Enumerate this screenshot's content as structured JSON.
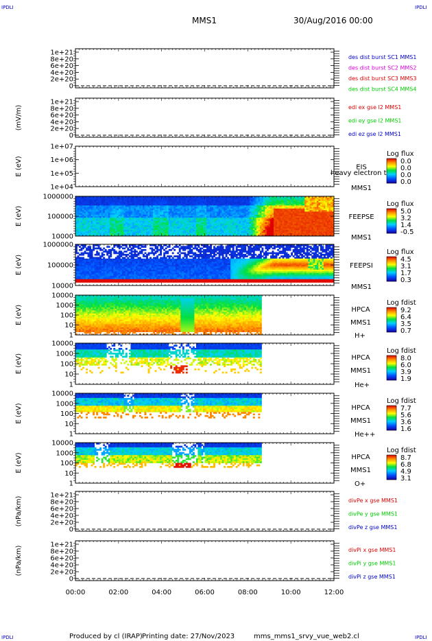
{
  "header": {
    "corner_tl": "IPDLI",
    "corner_tr": "IPDLI",
    "corner_bl": "IPDLI",
    "corner_br": "IPDLI",
    "mission": "MMS1",
    "datetime": "30/Aug/2016 00:00"
  },
  "footer": {
    "producer": "Produced by cl (IRAP)",
    "printing": "Printing date: 27/Nov/2023",
    "file": "mms_mms1_srvy_vue_web2.cl"
  },
  "colors": {
    "red": "#dd0000",
    "magenta": "#dd00dd",
    "green": "#00cc00",
    "blue": "#0000cc"
  },
  "chart_data": {
    "type": "heatmap",
    "x_ticks": [
      "00:00",
      "02:00",
      "04:00",
      "06:00",
      "08:00",
      "10:00",
      "12:00"
    ],
    "x_range_hours": [
      0,
      12
    ],
    "panels": [
      {
        "kind": "line",
        "ylabel": "",
        "yticks": [
          "1e+21",
          "8e+20",
          "6e+20",
          "4e+20",
          "2e+20",
          "0"
        ],
        "legend": [
          {
            "text": "des dist burst SC1 MMS1",
            "color": "#0000cc"
          },
          {
            "text": "des dist burst SC2 MMS2",
            "color": "#dd00dd"
          },
          {
            "text": "des dist burst SC3 MMS3",
            "color": "#dd0000"
          },
          {
            "text": "des dist burst SC4 MMS4",
            "color": "#00cc00"
          }
        ]
      },
      {
        "kind": "line",
        "ylabel": "(mV/m)",
        "yticks": [
          "1e+21",
          "8e+20",
          "6e+20",
          "4e+20",
          "2e+20",
          "0"
        ],
        "legend": [
          {
            "text": "edi ex gse l2 MMS1",
            "color": "#dd0000"
          },
          {
            "text": "edi ey gse l2 MMS1",
            "color": "#00cc00"
          },
          {
            "text": "edi ez gse l2 MMS1",
            "color": "#0000cc"
          }
        ]
      },
      {
        "kind": "spec",
        "ylabel": "E (eV)",
        "yticks": [
          "1e+07",
          "1e+06",
          "1e+05",
          "1e+04"
        ],
        "name": [
          "EIS",
          "MMS1"
        ],
        "overlay": "heavy electron to",
        "cbar_title": "Log flux",
        "cbar_ticks": [
          "0.0",
          "0.0",
          "0.0",
          "0.0"
        ],
        "fill": "none"
      },
      {
        "kind": "spec",
        "ylabel": "E (eV)",
        "yticks": [
          "1000000",
          "100000",
          "10000"
        ],
        "name": [
          "FEEPSE",
          "MMS1"
        ],
        "cbar_title": "Log flux",
        "cbar_ticks": [
          "5.0",
          "3.2",
          "1.4",
          "-0.5"
        ],
        "fill": "feepse"
      },
      {
        "kind": "spec",
        "ylabel": "E (eV)",
        "yticks": [
          "1000000",
          "100000",
          "10000"
        ],
        "name": [
          "FEEPSI",
          "MMS1"
        ],
        "cbar_title": "Log flux",
        "cbar_ticks": [
          "4.5",
          "3.1",
          "1.7",
          "0.3"
        ],
        "fill": "feepsi"
      },
      {
        "kind": "spec",
        "ylabel": "E (eV)",
        "yticks": [
          "10000",
          "1000",
          "100",
          "10",
          "1"
        ],
        "name": [
          "HPCA",
          "MMS1",
          "H+"
        ],
        "cbar_title": "Log fdist",
        "cbar_ticks": [
          "9.2",
          "6.4",
          "3.5",
          "0.7"
        ],
        "fill": "hplus",
        "data_end_hour": 8.6
      },
      {
        "kind": "spec",
        "ylabel": "E (eV)",
        "yticks": [
          "10000",
          "1000",
          "100",
          "10",
          "1"
        ],
        "name": [
          "HPCA",
          "MMS1",
          "He+"
        ],
        "cbar_title": "Log fdist",
        "cbar_ticks": [
          "8.0",
          "6.0",
          "3.9",
          "1.9"
        ],
        "fill": "heplus",
        "data_end_hour": 8.6
      },
      {
        "kind": "spec",
        "ylabel": "E (eV)",
        "yticks": [
          "10000",
          "1000",
          "100",
          "10",
          "1"
        ],
        "name": [
          "HPCA",
          "MMS1",
          "He++"
        ],
        "cbar_title": "Log fdist",
        "cbar_ticks": [
          "7.7",
          "5.6",
          "3.6",
          "1.6"
        ],
        "fill": "heplusplus",
        "data_end_hour": 8.6
      },
      {
        "kind": "spec",
        "ylabel": "E (eV)",
        "yticks": [
          "10000",
          "1000",
          "100",
          "10",
          "1"
        ],
        "name": [
          "HPCA",
          "MMS1",
          "O+"
        ],
        "cbar_title": "Log fdist",
        "cbar_ticks": [
          "8.7",
          "6.8",
          "4.9",
          "3.1"
        ],
        "fill": "oplus",
        "data_end_hour": 8.6
      },
      {
        "kind": "line",
        "ylabel": "(nPa/km)",
        "yticks": [
          "1e+21",
          "8e+20",
          "6e+20",
          "4e+20",
          "2e+20",
          "0"
        ],
        "legend": [
          {
            "text": "divPe x gse MMS1",
            "color": "#dd0000"
          },
          {
            "text": "divPe y gse MMS1",
            "color": "#00cc00"
          },
          {
            "text": "divPe z gse MMS1",
            "color": "#0000cc"
          }
        ]
      },
      {
        "kind": "line",
        "ylabel": "(nPa/km)",
        "yticks": [
          "1e+21",
          "8e+20",
          "6e+20",
          "4e+20",
          "2e+20",
          "0"
        ],
        "legend": [
          {
            "text": "divPi x gse MMS1",
            "color": "#dd0000"
          },
          {
            "text": "divPi y gse MMS1",
            "color": "#00cc00"
          },
          {
            "text": "divPi z gse MMS1",
            "color": "#0000cc"
          }
        ]
      }
    ]
  }
}
